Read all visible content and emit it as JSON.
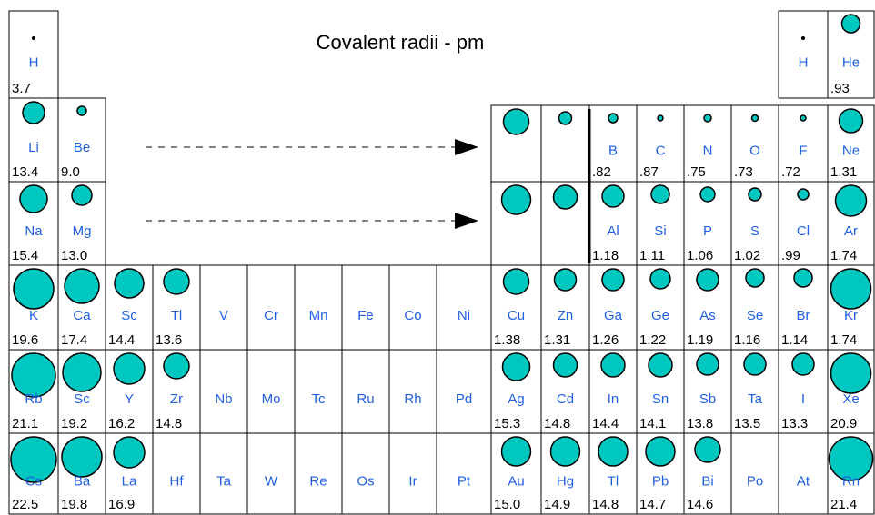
{
  "title": "Covalent radii - pm",
  "cells": [
    {
      "symbol": "H",
      "value": "3.7"
    },
    {
      "symbol": "H"
    },
    {
      "symbol": "He",
      "value": ".93"
    },
    {
      "symbol": "Li",
      "value": "13.4"
    },
    {
      "symbol": "Be",
      "value": "9.0"
    },
    {},
    {},
    {
      "symbol": "B",
      "value": ".82"
    },
    {
      "symbol": "C",
      "value": ".87"
    },
    {
      "symbol": "N",
      "value": ".75"
    },
    {
      "symbol": "O",
      "value": ".73"
    },
    {
      "symbol": "F",
      "value": ".72"
    },
    {
      "symbol": "Ne",
      "value": "1.31"
    },
    {
      "symbol": "Na",
      "value": "15.4"
    },
    {
      "symbol": "Mg",
      "value": "13.0"
    },
    {},
    {},
    {
      "symbol": "Al",
      "value": "1.18"
    },
    {
      "symbol": "Si",
      "value": "1.11"
    },
    {
      "symbol": "P",
      "value": "1.06"
    },
    {
      "symbol": "S",
      "value": "1.02"
    },
    {
      "symbol": "Cl",
      "value": ".99"
    },
    {
      "symbol": "Ar",
      "value": "1.74"
    },
    {
      "symbol": "K",
      "value": "19.6"
    },
    {
      "symbol": "Ca",
      "value": "17.4"
    },
    {
      "symbol": "Sc",
      "value": "14.4"
    },
    {
      "symbol": "Tl",
      "value": "13.6"
    },
    {
      "symbol": "V"
    },
    {
      "symbol": "Cr"
    },
    {
      "symbol": "Mn"
    },
    {
      "symbol": "Fe"
    },
    {
      "symbol": "Co"
    },
    {
      "symbol": "Ni"
    },
    {
      "symbol": "Cu",
      "value": "1.38"
    },
    {
      "symbol": "Zn",
      "value": "1.31"
    },
    {
      "symbol": "Ga",
      "value": "1.26"
    },
    {
      "symbol": "Ge",
      "value": "1.22"
    },
    {
      "symbol": "As",
      "value": "1.19"
    },
    {
      "symbol": "Se",
      "value": "1.16"
    },
    {
      "symbol": "Br",
      "value": "1.14"
    },
    {
      "symbol": "Kr",
      "value": "1.74"
    },
    {
      "symbol": "Rb",
      "value": "21.1"
    },
    {
      "symbol": "Sc",
      "value": "19.2"
    },
    {
      "symbol": "Y",
      "value": "16.2"
    },
    {
      "symbol": "Zr",
      "value": "14.8"
    },
    {
      "symbol": "Nb"
    },
    {
      "symbol": "Mo"
    },
    {
      "symbol": "Tc"
    },
    {
      "symbol": "Ru"
    },
    {
      "symbol": "Rh"
    },
    {
      "symbol": "Pd"
    },
    {
      "symbol": "Ag",
      "value": "15.3"
    },
    {
      "symbol": "Cd",
      "value": "14.8"
    },
    {
      "symbol": "In",
      "value": "14.4"
    },
    {
      "symbol": "Sn",
      "value": "14.1"
    },
    {
      "symbol": "Sb",
      "value": "13.8"
    },
    {
      "symbol": "Ta",
      "value": "13.5"
    },
    {
      "symbol": "I",
      "value": "13.3"
    },
    {
      "symbol": "Xe",
      "value": "20.9"
    },
    {
      "symbol": "Cs",
      "value": "22.5"
    },
    {
      "symbol": "Ba",
      "value": "19.8"
    },
    {
      "symbol": "La",
      "value": "16.9"
    },
    {
      "symbol": "Hf"
    },
    {
      "symbol": "Ta"
    },
    {
      "symbol": "W"
    },
    {
      "symbol": "Re"
    },
    {
      "symbol": "Os"
    },
    {
      "symbol": "Ir"
    },
    {
      "symbol": "Pt"
    },
    {
      "symbol": "Au",
      "value": "15.0"
    },
    {
      "symbol": "Hg",
      "value": "14.9"
    },
    {
      "symbol": "Tl",
      "value": "14.8"
    },
    {
      "symbol": "Pb",
      "value": "14.7"
    },
    {
      "symbol": "Bi",
      "value": "14.6"
    },
    {
      "symbol": "Po"
    },
    {
      "symbol": "At"
    },
    {
      "symbol": "Rn",
      "value": "21.4"
    }
  ]
}
